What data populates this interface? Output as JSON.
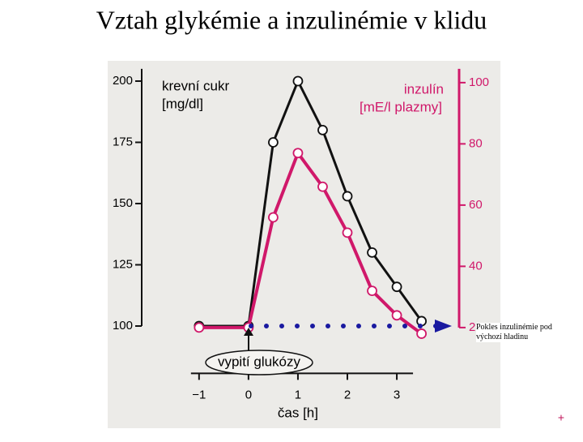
{
  "chart_data": {
    "type": "line",
    "title": "Vztah glykémie a inzulinémie v klidu",
    "x": [
      -1,
      0,
      0.5,
      1,
      1.5,
      2,
      2.5,
      3,
      3.5
    ],
    "series": [
      {
        "name": "krevní cukr",
        "color": "#111111",
        "values": [
          100,
          100,
          175,
          200,
          180,
          153,
          130,
          116,
          102
        ]
      },
      {
        "name": "inzulín",
        "color": "#d0186a",
        "axis": "y2",
        "values": [
          20,
          20,
          56,
          77,
          66,
          51,
          32,
          24,
          18
        ]
      }
    ],
    "ylabel": "[mg/dl]",
    "y2label": "[mE/l plazmy]",
    "xlabel": "čas [h]",
    "xlim": [
      -2.16,
      4.26
    ],
    "xticks": [
      {
        "value": -1,
        "label": "−1"
      },
      0,
      1,
      2,
      3
    ],
    "ylim": [
      80,
      205
    ],
    "yticks": [
      100,
      125,
      150,
      175,
      200
    ],
    "y2lim": [
      4.5,
      104.5
    ],
    "y2ticks": [
      20,
      40,
      60,
      80,
      100
    ],
    "annotations": [
      "vypití glukózy",
      "Pokles inzulinémie pod výchozí hladinu",
      "+"
    ]
  }
}
